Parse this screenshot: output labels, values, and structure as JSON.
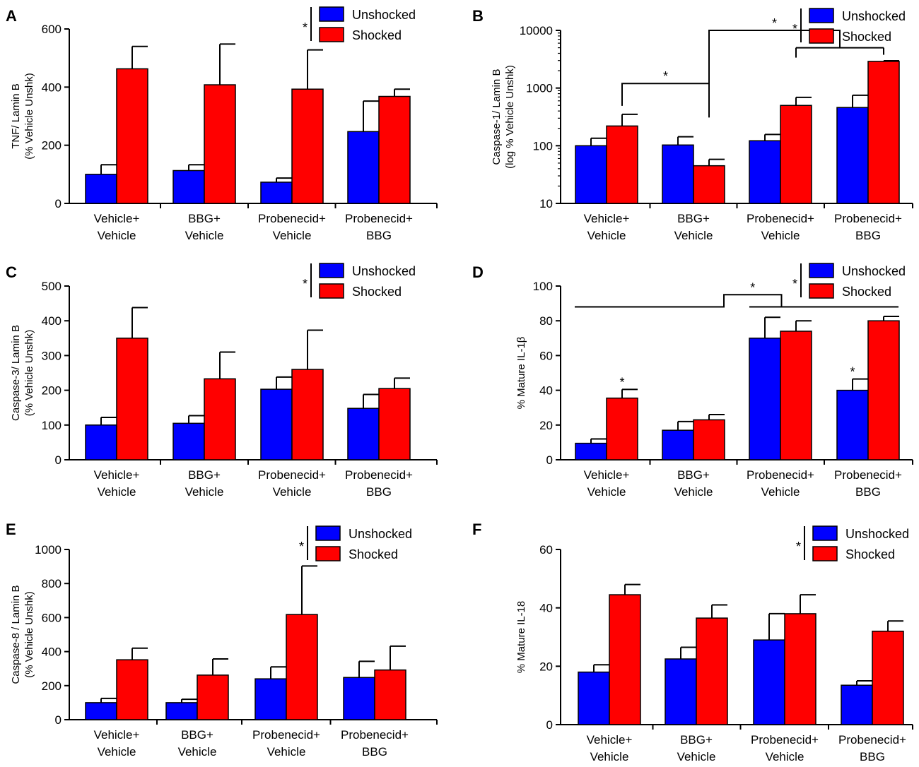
{
  "colors": {
    "unshocked": "#0000ff",
    "shocked": "#ff0000"
  },
  "chart_data": [
    {
      "panel": "A",
      "type": "bar",
      "scale": "linear",
      "ylabel_lines": [
        "TNF/ Lamin B",
        "(% Vehicle Unshk)"
      ],
      "ylim": [
        0,
        600
      ],
      "yticks": [
        0,
        200,
        400,
        600
      ],
      "ytick_labels": [
        "0",
        "200",
        "400",
        "600"
      ],
      "categories": [
        [
          "Vehicle+",
          "Vehicle"
        ],
        [
          "BBG+",
          "Vehicle"
        ],
        [
          "Probenecid+",
          "Vehicle"
        ],
        [
          "Probenecid+",
          "BBG"
        ]
      ],
      "series": [
        {
          "name": "Unshocked",
          "values": [
            100,
            113,
            73,
            247
          ],
          "errors": [
            33,
            20,
            14,
            105
          ]
        },
        {
          "name": "Shocked",
          "values": [
            463,
            408,
            393,
            368
          ],
          "errors": [
            77,
            140,
            135,
            25
          ]
        }
      ],
      "legend_star": "*",
      "point_stars": [],
      "brackets": []
    },
    {
      "panel": "B",
      "type": "bar",
      "scale": "log",
      "ylabel_lines": [
        "Caspase-1/ Lamin B",
        "(log % Vehicle Unshk)"
      ],
      "ylim": [
        10,
        10000
      ],
      "yticks": [
        10,
        100,
        1000,
        10000
      ],
      "ytick_labels": [
        "10",
        "100",
        "1000",
        "10000"
      ],
      "categories": [
        [
          "Vehicle+",
          "Vehicle"
        ],
        [
          "BBG+",
          "Vehicle"
        ],
        [
          "Probenecid+",
          "Vehicle"
        ],
        [
          "Probenecid+",
          "BBG"
        ]
      ],
      "series": [
        {
          "name": "Unshocked",
          "values": [
            100,
            103,
            122,
            460
          ],
          "errors": [
            35,
            40,
            35,
            290
          ]
        },
        {
          "name": "Shocked",
          "values": [
            220,
            45,
            500,
            2900
          ],
          "errors": [
            130,
            13,
            190,
            80
          ]
        }
      ],
      "legend_star": "*",
      "point_stars": [],
      "brackets": [
        {
          "kind": "bar-tick",
          "from": [
            0,
            1
          ],
          "to": [
            1,
            1
          ],
          "y": 1200,
          "tick_down_to": 100,
          "label": "*"
        },
        {
          "kind": "grouped",
          "groups": [
            [
              1,
              1,
              1
            ],
            [
              2,
              1,
              3,
              1
            ]
          ],
          "y_group": 5000,
          "y_top": 10000,
          "label": "*"
        }
      ]
    },
    {
      "panel": "C",
      "type": "bar",
      "scale": "linear",
      "ylabel_lines": [
        "Caspase-3/ Lamin B",
        "(% Vehicle Unshk)"
      ],
      "ylim": [
        0,
        500
      ],
      "yticks": [
        0,
        100,
        200,
        300,
        400,
        500
      ],
      "ytick_labels": [
        "0",
        "100",
        "200",
        "300",
        "400",
        "500"
      ],
      "categories": [
        [
          "Vehicle+",
          "Vehicle"
        ],
        [
          "BBG+",
          "Vehicle"
        ],
        [
          "Probenecid+",
          "Vehicle"
        ],
        [
          "Probenecid+",
          "BBG"
        ]
      ],
      "series": [
        {
          "name": "Unshocked",
          "values": [
            100,
            105,
            203,
            148
          ],
          "errors": [
            22,
            22,
            35,
            40
          ]
        },
        {
          "name": "Shocked",
          "values": [
            350,
            233,
            260,
            205
          ],
          "errors": [
            88,
            77,
            113,
            30
          ]
        }
      ],
      "legend_star": "*",
      "point_stars": [],
      "brackets": []
    },
    {
      "panel": "D",
      "type": "bar",
      "scale": "linear",
      "ylabel_lines": [
        "% Mature IL-1β"
      ],
      "ylim": [
        0,
        100
      ],
      "yticks": [
        0,
        20,
        40,
        60,
        80,
        100
      ],
      "ytick_labels": [
        "0",
        "20",
        "40",
        "60",
        "80",
        "100"
      ],
      "categories": [
        [
          "Vehicle+",
          "Vehicle"
        ],
        [
          "BBG+",
          "Vehicle"
        ],
        [
          "Probenecid+",
          "Vehicle"
        ],
        [
          "Probenecid+",
          "BBG"
        ]
      ],
      "series": [
        {
          "name": "Unshocked",
          "values": [
            9.5,
            17,
            70,
            40
          ],
          "errors": [
            2.5,
            5,
            12,
            6.5
          ]
        },
        {
          "name": "Shocked",
          "values": [
            35.5,
            23,
            74,
            80
          ],
          "errors": [
            5,
            3,
            6,
            2.5
          ]
        }
      ],
      "legend_star": "*",
      "point_stars": [
        {
          "group": 0,
          "series": 1,
          "label": "*"
        },
        {
          "group": 3,
          "series": 0,
          "label": "*"
        }
      ],
      "brackets": [
        {
          "kind": "span-pair",
          "left": [
            0,
            1
          ],
          "right": [
            2,
            3
          ],
          "y_line": 88,
          "y_top": 95,
          "label": "*"
        }
      ]
    },
    {
      "panel": "E",
      "type": "bar",
      "scale": "linear",
      "ylabel_lines": [
        "Caspase-8 / Lamin B",
        "(% Vehicle Unshk)"
      ],
      "ylim": [
        0,
        1000
      ],
      "yticks": [
        0,
        200,
        400,
        600,
        800,
        1000
      ],
      "ytick_labels": [
        "0",
        "200",
        "400",
        "600",
        "800",
        "1000"
      ],
      "categories": [
        [
          "Vehicle+",
          "Vehicle"
        ],
        [
          "BBG+",
          "Vehicle"
        ],
        [
          "Probenecid+",
          "Vehicle"
        ],
        [
          "Probenecid+",
          "BBG"
        ]
      ],
      "series": [
        {
          "name": "Unshocked",
          "values": [
            100,
            100,
            240,
            248
          ],
          "errors": [
            25,
            20,
            70,
            95
          ]
        },
        {
          "name": "Shocked",
          "values": [
            352,
            262,
            618,
            292
          ],
          "errors": [
            68,
            95,
            285,
            140
          ]
        }
      ],
      "legend_star": "*",
      "point_stars": [],
      "brackets": []
    },
    {
      "panel": "F",
      "type": "bar",
      "scale": "linear",
      "ylabel_lines": [
        "% Mature IL-18"
      ],
      "ylim": [
        0,
        60
      ],
      "yticks": [
        0,
        20,
        40,
        60
      ],
      "ytick_labels": [
        "0",
        "20",
        "40",
        "60"
      ],
      "categories": [
        [
          "Vehicle+",
          "Vehicle"
        ],
        [
          "BBG+",
          "Vehicle"
        ],
        [
          "Probenecid+",
          "Vehicle"
        ],
        [
          "Probenecid+",
          "BBG"
        ]
      ],
      "series": [
        {
          "name": "Unshocked",
          "values": [
            18,
            22.5,
            29,
            13.5
          ],
          "errors": [
            2.5,
            4,
            9,
            1.5
          ]
        },
        {
          "name": "Shocked",
          "values": [
            44.5,
            36.5,
            38,
            32
          ],
          "errors": [
            3.5,
            4.5,
            6.5,
            3.5
          ]
        }
      ],
      "legend_star": "*",
      "point_stars": [],
      "brackets": []
    }
  ]
}
